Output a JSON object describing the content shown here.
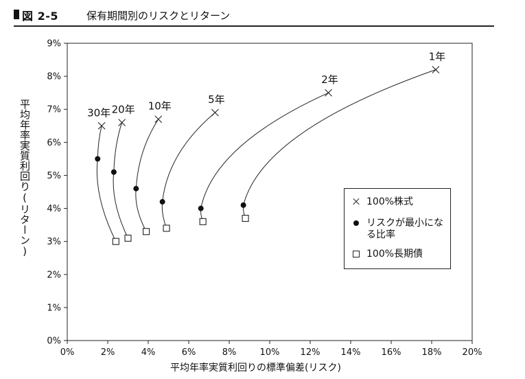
{
  "header": {
    "figure_no": "図 2-5",
    "title": "保有期間別のリスクとリターン"
  },
  "chart_data": {
    "type": "scatter",
    "title": "保有期間別のリスクとリターン",
    "xlabel": "平均年率実質利回りの標準偏差(リスク)",
    "ylabel": "平均年率実質利回り(リターン)",
    "xlim": [
      0,
      20
    ],
    "ylim": [
      0,
      9
    ],
    "x_ticks": [
      "0%",
      "2%",
      "4%",
      "6%",
      "8%",
      "10%",
      "12%",
      "14%",
      "16%",
      "18%",
      "20%"
    ],
    "y_ticks": [
      "0%",
      "1%",
      "2%",
      "3%",
      "4%",
      "5%",
      "6%",
      "7%",
      "8%",
      "9%"
    ],
    "grid": false,
    "legend_position": "right",
    "legend": [
      {
        "symbol": "cross",
        "label": "100%株式"
      },
      {
        "symbol": "dot",
        "label": "リスクが最小になる比率"
      },
      {
        "symbol": "square",
        "label": "100%長期債"
      }
    ],
    "series": [
      {
        "name": "1年",
        "stock": {
          "x": 18.2,
          "y": 8.2
        },
        "min_risk": {
          "x": 8.7,
          "y": 4.1
        },
        "bond": {
          "x": 8.8,
          "y": 3.7
        }
      },
      {
        "name": "2年",
        "stock": {
          "x": 12.9,
          "y": 7.5
        },
        "min_risk": {
          "x": 6.6,
          "y": 4.0
        },
        "bond": {
          "x": 6.7,
          "y": 3.6
        }
      },
      {
        "name": "5年",
        "stock": {
          "x": 7.3,
          "y": 6.9
        },
        "min_risk": {
          "x": 4.7,
          "y": 4.2
        },
        "bond": {
          "x": 4.9,
          "y": 3.4
        }
      },
      {
        "name": "10年",
        "stock": {
          "x": 4.5,
          "y": 6.7
        },
        "min_risk": {
          "x": 3.4,
          "y": 4.6
        },
        "bond": {
          "x": 3.9,
          "y": 3.3
        }
      },
      {
        "name": "20年",
        "stock": {
          "x": 2.7,
          "y": 6.6
        },
        "min_risk": {
          "x": 2.3,
          "y": 5.1
        },
        "bond": {
          "x": 3.0,
          "y": 3.1
        }
      },
      {
        "name": "30年",
        "stock": {
          "x": 1.7,
          "y": 6.5
        },
        "min_risk": {
          "x": 1.5,
          "y": 5.5
        },
        "bond": {
          "x": 2.4,
          "y": 3.0
        }
      }
    ]
  }
}
